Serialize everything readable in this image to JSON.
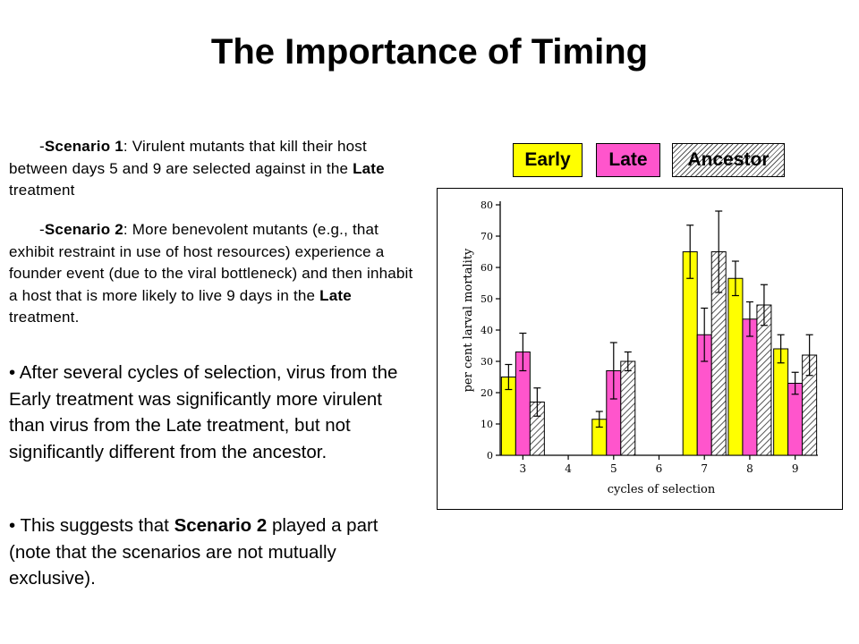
{
  "title": "The Importance of Timing",
  "scenario1": {
    "dash": "-",
    "label": "Scenario 1",
    "text_a": ": Virulent mutants that kill their host between days 5 and 9 are selected against in the ",
    "late": "Late",
    "text_b": " treatment"
  },
  "scenario2": {
    "dash": "-",
    "label": "Scenario 2",
    "text_a": ": More benevolent mutants (e.g., that exhibit restraint in use of host resources) experience a founder event (due to the viral bottleneck) and then inhabit a host that is more likely to live 9 days in the ",
    "late": "Late",
    "text_b": " treatment."
  },
  "bullet1": {
    "marker": "•",
    "text": " After several cycles of selection, virus from the Early treatment was significantly more virulent than virus from the Late treatment, but not significantly different from the ancestor."
  },
  "bullet2": {
    "marker": "•",
    "text_a": " This suggests that ",
    "bold": "Scenario 2",
    "text_b": " played a part (note that the scenarios are not mutually exclusive)."
  },
  "legend": {
    "early": "Early",
    "late": "Late",
    "ancestor": "Ancestor"
  },
  "colors": {
    "early": "#ffff00",
    "late": "#ff55cc",
    "ancestor_hatch": "#555555"
  },
  "chart_data": {
    "type": "bar",
    "xlabel": "cycles of selection",
    "ylabel": "per cent larval mortality",
    "ylim": [
      0,
      80
    ],
    "yticks": [
      0,
      10,
      20,
      30,
      40,
      50,
      60,
      70,
      80
    ],
    "categories": [
      "3",
      "4",
      "5",
      "6",
      "7",
      "8",
      "9"
    ],
    "series": [
      {
        "name": "Early",
        "color": "#ffff00",
        "hatch": false,
        "values": [
          25,
          null,
          11.5,
          null,
          65,
          56.5,
          34
        ],
        "errors": [
          4,
          null,
          2.5,
          null,
          8.5,
          5.5,
          4.5
        ]
      },
      {
        "name": "Late",
        "color": "#ff55cc",
        "hatch": false,
        "values": [
          33,
          null,
          27,
          null,
          38.5,
          43.5,
          23
        ],
        "errors": [
          6,
          null,
          9,
          null,
          8.5,
          5.5,
          3.5
        ]
      },
      {
        "name": "Ancestor",
        "color": "#ffffff",
        "hatch": true,
        "values": [
          17,
          null,
          30,
          null,
          65,
          48,
          32
        ],
        "errors": [
          4.5,
          null,
          3,
          null,
          13,
          6.5,
          6.5
        ]
      }
    ],
    "grid": false,
    "legend_position": "top"
  }
}
